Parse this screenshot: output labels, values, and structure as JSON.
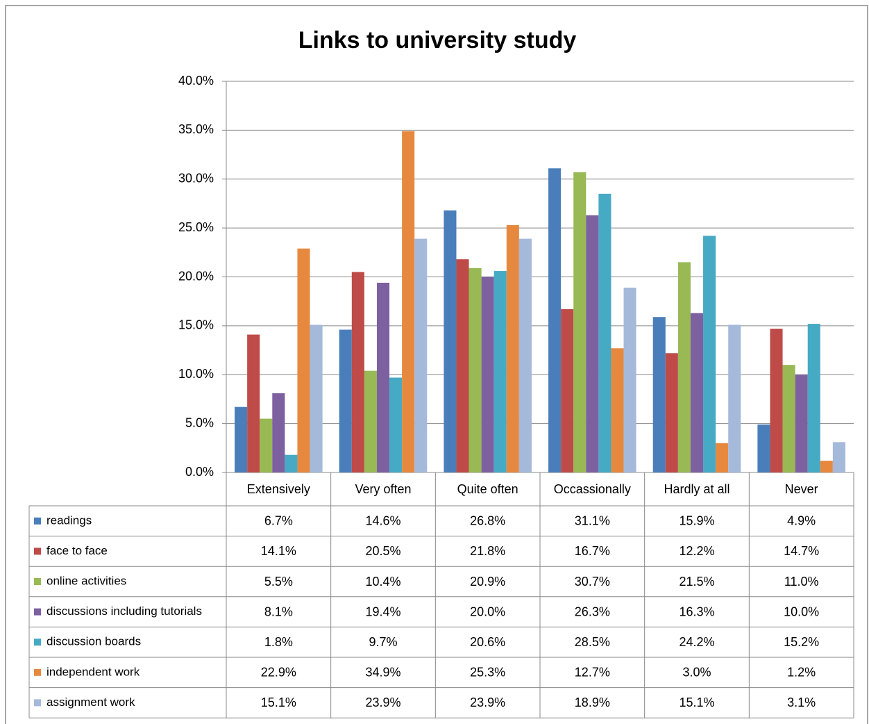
{
  "chart_data": {
    "type": "bar",
    "title": "Links to university study",
    "categories": [
      "Extensively",
      "Very often",
      "Quite often",
      "Occassionally",
      "Hardly at all",
      "Never"
    ],
    "series": [
      {
        "name": "readings",
        "color": "#4a7ebb",
        "values": [
          6.7,
          14.6,
          26.8,
          31.1,
          15.9,
          4.9
        ],
        "value_labels": [
          "6.7%",
          "14.6%",
          "26.8%",
          "31.1%",
          "15.9%",
          "4.9%"
        ]
      },
      {
        "name": "face to face",
        "color": "#be4b48",
        "values": [
          14.1,
          20.5,
          21.8,
          16.7,
          12.2,
          14.7
        ],
        "value_labels": [
          "14.1%",
          "20.5%",
          "21.8%",
          "16.7%",
          "12.2%",
          "14.7%"
        ]
      },
      {
        "name": "online activities",
        "color": "#98b954",
        "values": [
          5.5,
          10.4,
          20.9,
          30.7,
          21.5,
          11.0
        ],
        "value_labels": [
          "5.5%",
          "10.4%",
          "20.9%",
          "30.7%",
          "21.5%",
          "11.0%"
        ]
      },
      {
        "name": "discussions including tutorials",
        "color": "#7d60a0",
        "values": [
          8.1,
          19.4,
          20.0,
          26.3,
          16.3,
          10.0
        ],
        "value_labels": [
          "8.1%",
          "19.4%",
          "20.0%",
          "26.3%",
          "16.3%",
          "10.0%"
        ]
      },
      {
        "name": "discussion boards",
        "color": "#46aac5",
        "values": [
          1.8,
          9.7,
          20.6,
          28.5,
          24.2,
          15.2
        ],
        "value_labels": [
          "1.8%",
          "9.7%",
          "20.6%",
          "28.5%",
          "24.2%",
          "15.2%"
        ]
      },
      {
        "name": "independent work",
        "color": "#e6893f",
        "values": [
          22.9,
          34.9,
          25.3,
          12.7,
          3.0,
          1.2
        ],
        "value_labels": [
          "22.9%",
          "34.9%",
          "25.3%",
          "12.7%",
          "3.0%",
          "1.2%"
        ]
      },
      {
        "name": "assignment work",
        "color": "#a5b9db",
        "values": [
          15.1,
          23.9,
          23.9,
          18.9,
          15.1,
          3.1
        ],
        "value_labels": [
          "15.1%",
          "23.9%",
          "23.9%",
          "18.9%",
          "15.1%",
          "3.1%"
        ]
      }
    ],
    "ylim": [
      0,
      40
    ],
    "yticks": [
      {
        "value": 0,
        "label": "0.0%"
      },
      {
        "value": 5,
        "label": "5.0%"
      },
      {
        "value": 10,
        "label": "10.0%"
      },
      {
        "value": 15,
        "label": "15.0%"
      },
      {
        "value": 20,
        "label": "20.0%"
      },
      {
        "value": 25,
        "label": "25.0%"
      },
      {
        "value": 30,
        "label": "30.0%"
      },
      {
        "value": 35,
        "label": "35.0%"
      },
      {
        "value": 40,
        "label": "40.0%"
      }
    ],
    "grid": true
  }
}
